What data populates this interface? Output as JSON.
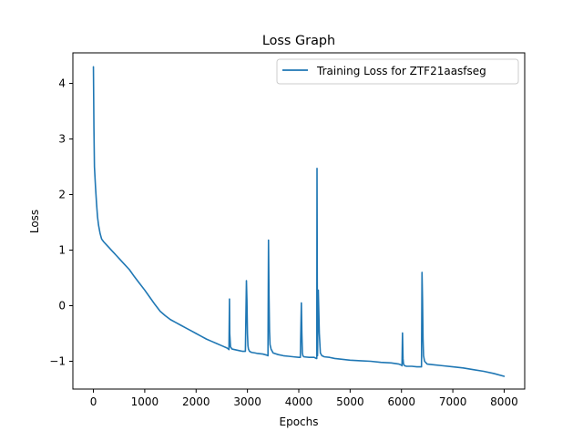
{
  "chart_data": {
    "type": "line",
    "title": "Loss Graph",
    "xlabel": "Epochs",
    "ylabel": "Loss",
    "xlim": [
      -400,
      8400
    ],
    "ylim": [
      -1.5,
      4.55
    ],
    "x_ticks": [
      0,
      1000,
      2000,
      3000,
      4000,
      5000,
      6000,
      7000,
      8000
    ],
    "x_tick_labels": [
      "0",
      "1000",
      "2000",
      "3000",
      "4000",
      "5000",
      "6000",
      "7000",
      "8000"
    ],
    "y_ticks": [
      -1,
      0,
      1,
      2,
      3,
      4
    ],
    "y_tick_labels": [
      "−1",
      "0",
      "1",
      "2",
      "3",
      "4"
    ],
    "grid": false,
    "legend": {
      "placement": "top-right"
    },
    "colors": {
      "series": "#1f77b4",
      "axes": "#000000",
      "legend_border": "#cccccc"
    },
    "series": [
      {
        "name": "Training Loss for ZTF21aasfseg",
        "color": "#1f77b4",
        "x": [
          0,
          10,
          20,
          40,
          60,
          80,
          100,
          130,
          160,
          200,
          250,
          300,
          350,
          400,
          450,
          500,
          600,
          700,
          800,
          900,
          1000,
          1100,
          1200,
          1300,
          1400,
          1500,
          1600,
          1700,
          1800,
          1900,
          2000,
          2100,
          2200,
          2300,
          2400,
          2500,
          2600,
          2630,
          2640,
          2650,
          2655,
          2670,
          2700,
          2750,
          2800,
          2850,
          2900,
          2960,
          2980,
          2990,
          3000,
          3010,
          3020,
          3040,
          3080,
          3150,
          3200,
          3300,
          3380,
          3400,
          3410,
          3420,
          3430,
          3440,
          3460,
          3500,
          3600,
          3700,
          3800,
          3900,
          4000,
          4030,
          4050,
          4060,
          4070,
          4080,
          4100,
          4200,
          4300,
          4340,
          4350,
          4355,
          4360,
          4365,
          4380,
          4400,
          4420,
          4450,
          4500,
          4600,
          4700,
          4800,
          4900,
          5000,
          5200,
          5400,
          5600,
          5800,
          5950,
          6000,
          6010,
          6020,
          6030,
          6040,
          6060,
          6100,
          6200,
          6300,
          6360,
          6390,
          6400,
          6410,
          6420,
          6430,
          6450,
          6480,
          6500,
          6600,
          6800,
          7000,
          7200,
          7400,
          7600,
          7800,
          8000
        ],
        "y": [
          4.3,
          3.2,
          2.5,
          2.15,
          1.85,
          1.6,
          1.45,
          1.3,
          1.2,
          1.15,
          1.1,
          1.05,
          1.0,
          0.95,
          0.9,
          0.85,
          0.75,
          0.65,
          0.52,
          0.4,
          0.28,
          0.15,
          0.02,
          -0.1,
          -0.18,
          -0.25,
          -0.3,
          -0.35,
          -0.4,
          -0.45,
          -0.5,
          -0.55,
          -0.6,
          -0.64,
          -0.68,
          -0.72,
          -0.76,
          -0.78,
          -0.79,
          0.12,
          -0.5,
          -0.74,
          -0.78,
          -0.79,
          -0.8,
          -0.81,
          -0.82,
          -0.82,
          0.45,
          0.1,
          -0.5,
          -0.72,
          -0.78,
          -0.82,
          -0.84,
          -0.85,
          -0.86,
          -0.87,
          -0.89,
          -0.9,
          1.18,
          0.2,
          -0.45,
          -0.7,
          -0.78,
          -0.85,
          -0.88,
          -0.9,
          -0.91,
          -0.92,
          -0.93,
          -0.93,
          0.05,
          -0.5,
          -0.85,
          -0.9,
          -0.92,
          -0.93,
          -0.93,
          -0.95,
          -0.95,
          2.47,
          0.5,
          -0.9,
          0.28,
          -0.5,
          -0.85,
          -0.9,
          -0.92,
          -0.93,
          -0.95,
          -0.96,
          -0.97,
          -0.98,
          -0.99,
          -1.0,
          -1.02,
          -1.03,
          -1.05,
          -1.07,
          -1.08,
          -0.49,
          -0.95,
          -1.05,
          -1.08,
          -1.09,
          -1.09,
          -1.1,
          -1.1,
          -1.1,
          0.6,
          0.1,
          -0.6,
          -0.9,
          -1.0,
          -1.03,
          -1.05,
          -1.06,
          -1.08,
          -1.1,
          -1.12,
          -1.15,
          -1.18,
          -1.22,
          -1.27
        ]
      }
    ]
  }
}
